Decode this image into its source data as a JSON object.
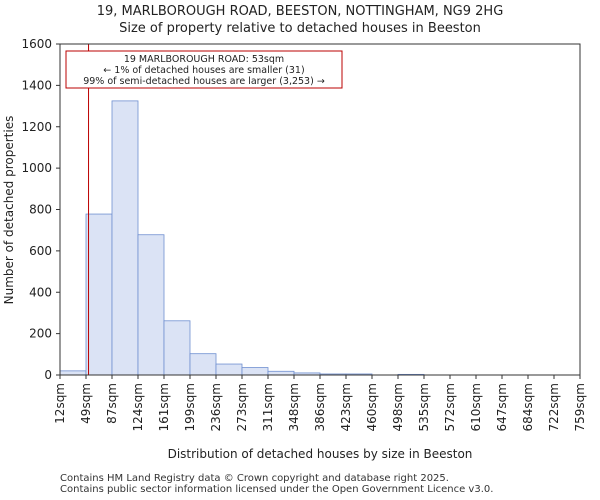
{
  "titles": {
    "line1": "19, MARLBOROUGH ROAD, BEESTON, NOTTINGHAM, NG9 2HG",
    "line2": "Size of property relative to detached houses in Beeston"
  },
  "chart_data": {
    "type": "bar",
    "title": "Size of property relative to detached houses in Beeston",
    "xlabel": "Distribution of detached houses by size in Beeston",
    "ylabel": "Number of detached properties",
    "ylim": [
      0,
      1600
    ],
    "yticks": [
      0,
      200,
      400,
      600,
      800,
      1000,
      1200,
      1400,
      1600
    ],
    "bin_edges": [
      12,
      49,
      87,
      124,
      161,
      199,
      236,
      273,
      311,
      348,
      386,
      423,
      460,
      498,
      535,
      572,
      610,
      647,
      684,
      722,
      759
    ],
    "tick_labels": [
      "12sqm",
      "49sqm",
      "87sqm",
      "124sqm",
      "161sqm",
      "199sqm",
      "236sqm",
      "273sqm",
      "311sqm",
      "348sqm",
      "386sqm",
      "423sqm",
      "460sqm",
      "498sqm",
      "535sqm",
      "572sqm",
      "610sqm",
      "647sqm",
      "684sqm",
      "722sqm",
      "759sqm"
    ],
    "values": [
      20,
      778,
      1325,
      678,
      262,
      103,
      53,
      36,
      18,
      10,
      5,
      5,
      0,
      3,
      0,
      0,
      0,
      0,
      0,
      0
    ],
    "bar_color": "#dbe3f5",
    "bar_edge_color": "#6f8fd0",
    "marker": {
      "value": 53,
      "color": "#bb0000",
      "label_lines": [
        "19 MARLBOROUGH ROAD: 53sqm",
        "← 1% of detached houses are smaller (31)",
        "99% of semi-detached houses are larger (3,253) →"
      ]
    },
    "grid": false
  },
  "footer": {
    "line1": "Contains HM Land Registry data © Crown copyright and database right 2025.",
    "line2": "Contains public sector information licensed under the Open Government Licence v3.0."
  }
}
